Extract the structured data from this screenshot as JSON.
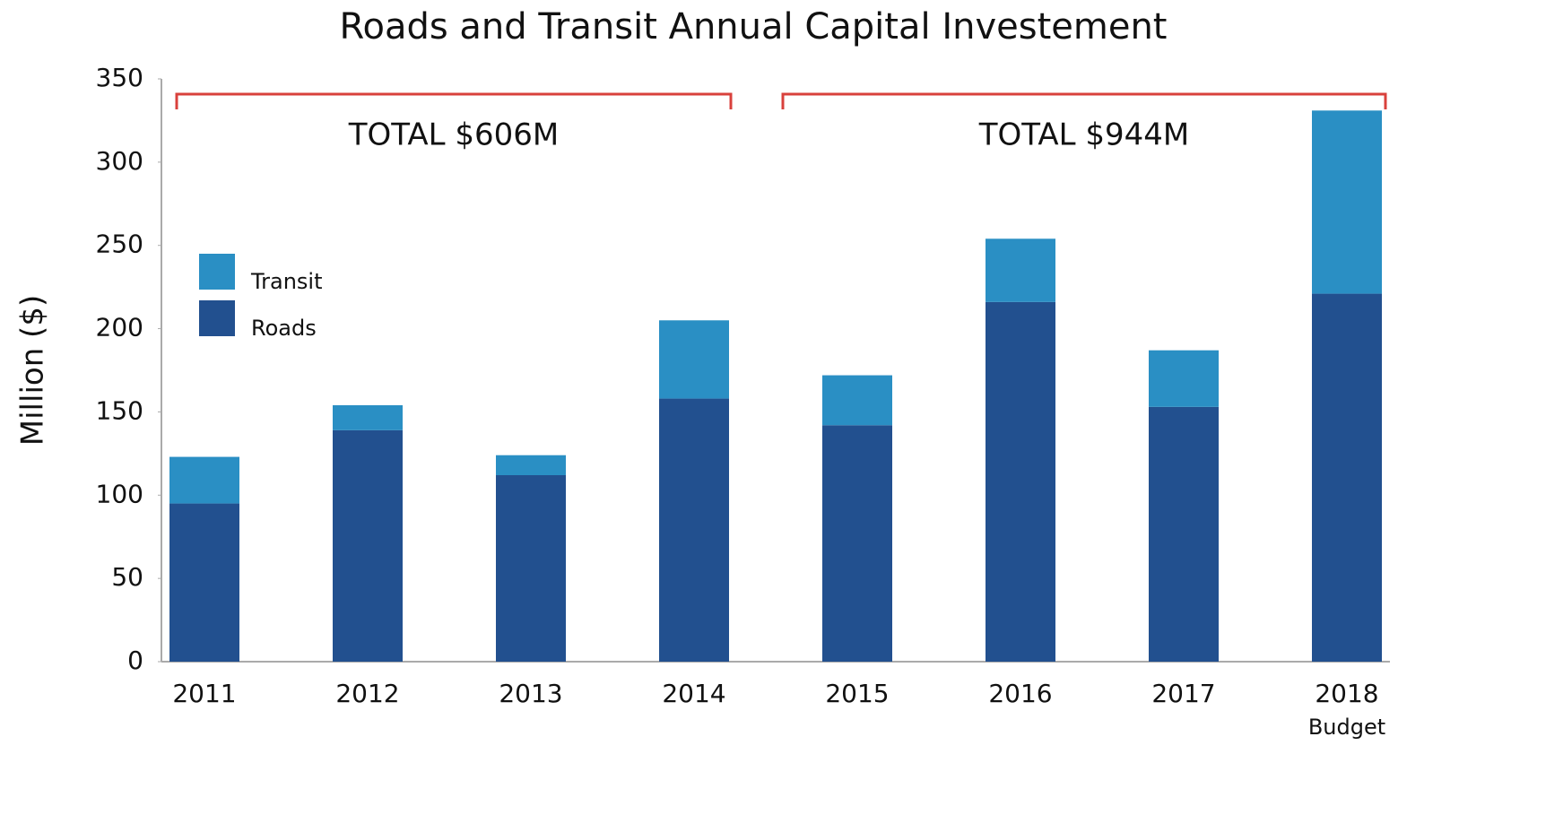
{
  "chart_data": {
    "type": "stacked_bar",
    "title": "Roads and Transit Annual Capital Investement",
    "y_label": "Million ($)",
    "categories": [
      "2011",
      "2012",
      "2013",
      "2014",
      "2015",
      "2016",
      "2017",
      "2018"
    ],
    "category_note": "Budget",
    "series": [
      {
        "name": "Roads",
        "color": "#22508f",
        "values": [
          95,
          139,
          112,
          158,
          142,
          216,
          153,
          221
        ]
      },
      {
        "name": "Transit",
        "color": "#2a8fc4",
        "values": [
          28,
          15,
          12,
          47,
          30,
          38,
          34,
          110
        ]
      }
    ],
    "ylim": [
      0,
      350
    ],
    "yticks": [
      0,
      50,
      100,
      150,
      200,
      250,
      300,
      350
    ],
    "grid": false,
    "annotations": [
      "TOTAL $606M",
      "TOTAL $944M"
    ],
    "bracket_color": "#d9413c"
  }
}
